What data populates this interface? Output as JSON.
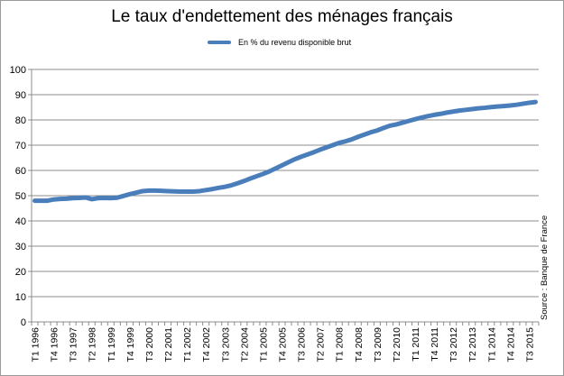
{
  "chart_data": {
    "type": "line",
    "title": "Le taux d'endettement des ménages français",
    "legend": "En % du revenu disponible brut",
    "source": "Source : Banque de France",
    "ylim": [
      0,
      100
    ],
    "yticks": [
      0,
      10,
      20,
      30,
      40,
      50,
      60,
      70,
      80,
      90,
      100
    ],
    "grid": true,
    "legend_position": "top-center",
    "xticks": [
      "T1 1996",
      "T4 1996",
      "T3 1997",
      "T2 1998",
      "T1 1999",
      "T4 1999",
      "T3 2000",
      "T2 2001",
      "T1 2002",
      "T4 2002",
      "T3 2003",
      "T2 2004",
      "T1 2005",
      "T4 2005",
      "T3 2006",
      "T2 2007",
      "T1 2008",
      "T4 2008",
      "T3 2009",
      "T2 2010",
      "T1 2011",
      "T4 2011",
      "T3 2012",
      "T2 2013",
      "T1 2014",
      "T4 2014",
      "T3 2015"
    ],
    "series": [
      {
        "name": "En % du revenu disponible brut",
        "color": "#4a7ebb",
        "x": [
          "T1 1996",
          "T2 1996",
          "T3 1996",
          "T4 1996",
          "T1 1997",
          "T2 1997",
          "T3 1997",
          "T4 1997",
          "T1 1998",
          "T2 1998",
          "T3 1998",
          "T4 1998",
          "T1 1999",
          "T2 1999",
          "T3 1999",
          "T4 1999",
          "T1 2000",
          "T2 2000",
          "T3 2000",
          "T4 2000",
          "T1 2001",
          "T2 2001",
          "T3 2001",
          "T4 2001",
          "T1 2002",
          "T2 2002",
          "T3 2002",
          "T4 2002",
          "T1 2003",
          "T2 2003",
          "T3 2003",
          "T4 2003",
          "T1 2004",
          "T2 2004",
          "T3 2004",
          "T4 2004",
          "T1 2005",
          "T2 2005",
          "T3 2005",
          "T4 2005",
          "T1 2006",
          "T2 2006",
          "T3 2006",
          "T4 2006",
          "T1 2007",
          "T2 2007",
          "T3 2007",
          "T4 2007",
          "T1 2008",
          "T2 2008",
          "T3 2008",
          "T4 2008",
          "T1 2009",
          "T2 2009",
          "T3 2009",
          "T4 2009",
          "T1 2010",
          "T2 2010",
          "T3 2010",
          "T4 2010",
          "T1 2011",
          "T2 2011",
          "T3 2011",
          "T4 2011",
          "T1 2012",
          "T2 2012",
          "T3 2012",
          "T4 2012",
          "T1 2013",
          "T2 2013",
          "T3 2013",
          "T4 2013",
          "T1 2014",
          "T2 2014",
          "T3 2014",
          "T4 2014",
          "T1 2015",
          "T2 2015",
          "T3 2015",
          "T4 2015"
        ],
        "values": [
          48.0,
          48.0,
          48.0,
          48.5,
          48.7,
          48.8,
          49.0,
          49.1,
          49.3,
          48.6,
          49.0,
          49.1,
          49.0,
          49.2,
          49.9,
          50.6,
          51.2,
          51.8,
          52.0,
          52.0,
          51.9,
          51.8,
          51.7,
          51.6,
          51.6,
          51.6,
          51.8,
          52.2,
          52.6,
          53.1,
          53.5,
          54.1,
          54.9,
          55.8,
          56.8,
          57.7,
          58.6,
          59.6,
          60.8,
          62.0,
          63.2,
          64.4,
          65.4,
          66.3,
          67.2,
          68.2,
          69.1,
          70.0,
          70.9,
          71.5,
          72.3,
          73.3,
          74.2,
          75.1,
          75.8,
          76.8,
          77.7,
          78.2,
          78.9,
          79.6,
          80.3,
          80.9,
          81.5,
          82.0,
          82.4,
          82.9,
          83.3,
          83.7,
          84.0,
          84.3,
          84.6,
          84.8,
          85.1,
          85.3,
          85.5,
          85.7,
          86.0,
          86.4,
          86.8,
          87.1
        ]
      }
    ]
  }
}
